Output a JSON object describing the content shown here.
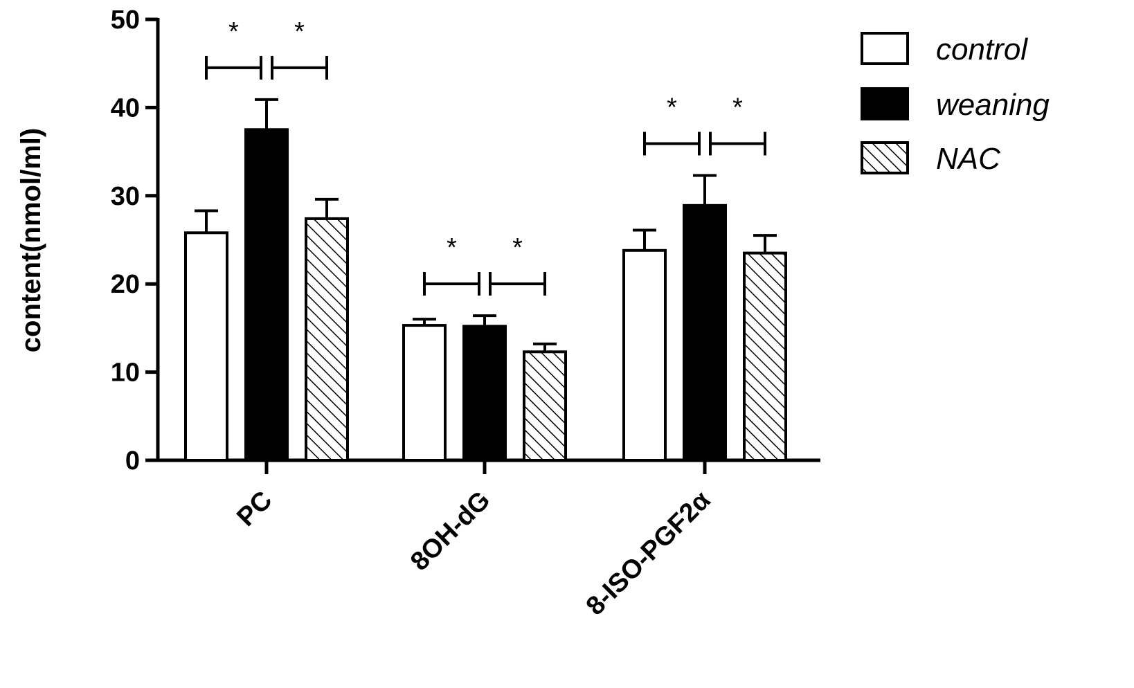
{
  "chart_data": {
    "type": "bar",
    "ylabel": "content(nmol/ml)",
    "ylim": [
      0,
      50
    ],
    "yticks": [
      "0",
      "10",
      "20",
      "30",
      "40",
      "50"
    ],
    "categories": [
      "PC",
      "8OH-dG",
      "8-ISO-PGF2α"
    ],
    "series": [
      {
        "name": "control",
        "fill": "white",
        "values": [
          25.8,
          15.3,
          23.8
        ],
        "errors": [
          2.5,
          0.7,
          2.3
        ]
      },
      {
        "name": "weaning",
        "fill": "black",
        "values": [
          37.5,
          15.2,
          28.9
        ],
        "errors": [
          3.4,
          1.2,
          3.4
        ]
      },
      {
        "name": "NAC",
        "fill": "hatch",
        "values": [
          27.4,
          12.3,
          23.5
        ],
        "errors": [
          2.2,
          0.9,
          2.0
        ]
      }
    ],
    "significance": [
      {
        "category": "PC",
        "groups": [
          "control",
          "weaning"
        ],
        "mark": "*"
      },
      {
        "category": "PC",
        "groups": [
          "weaning",
          "NAC"
        ],
        "mark": "*"
      },
      {
        "category": "8OH-dG",
        "groups": [
          "control",
          "weaning"
        ],
        "mark": "*"
      },
      {
        "category": "8OH-dG",
        "groups": [
          "weaning",
          "NAC"
        ],
        "mark": "*"
      },
      {
        "category": "8-ISO-PGF2α",
        "groups": [
          "control",
          "weaning"
        ],
        "mark": "*"
      },
      {
        "category": "8-ISO-PGF2α",
        "groups": [
          "weaning",
          "NAC"
        ],
        "mark": "*"
      }
    ],
    "legend_position": "top-right",
    "grid": false,
    "colors": {
      "axis": "#000000",
      "background": "#ffffff",
      "weaning": "#000000",
      "control": "#ffffff"
    }
  }
}
